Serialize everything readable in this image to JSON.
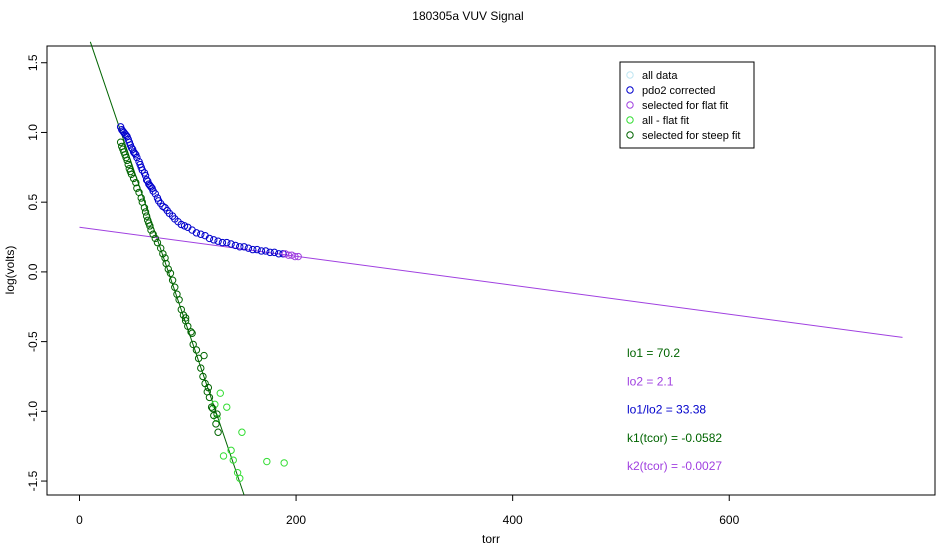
{
  "chart_data": {
    "type": "scatter",
    "title": "180305a   VUV Signal",
    "xlabel": "torr",
    "ylabel": "log(volts)",
    "xlim": [
      -30,
      790
    ],
    "ylim": [
      -1.6,
      1.62
    ],
    "x_ticks": [
      0,
      200,
      400,
      600
    ],
    "x_tick_labels": [
      "0",
      "200",
      "400",
      "600"
    ],
    "y_ticks": [
      1.5,
      1.0,
      0.5,
      0.0,
      -0.5,
      -1.0,
      -1.5
    ],
    "y_tick_labels": [
      "1.5",
      "1.0",
      "0.5",
      "0.0",
      "-0.5",
      "-1.0",
      "-1.5"
    ],
    "legend": {
      "position": "top-right",
      "entries": [
        {
          "label": "all data",
          "color": "#bfe6f2"
        },
        {
          "label": "pdo2 corrected",
          "color": "#0000cc"
        },
        {
          "label": "selected for flat fit",
          "color": "#a040e0"
        },
        {
          "label": "all - flat fit",
          "color": "#33dd33"
        },
        {
          "label": "selected for steep fit",
          "color": "#006400"
        }
      ]
    },
    "series": [
      {
        "name": "pdo2 corrected",
        "color": "#0000cc",
        "points": [
          [
            38,
            1.04
          ],
          [
            39,
            1.02
          ],
          [
            40,
            1.01
          ],
          [
            41,
            1.0
          ],
          [
            42,
            0.99
          ],
          [
            43,
            0.98
          ],
          [
            44,
            0.97
          ],
          [
            45,
            0.95
          ],
          [
            46,
            0.93
          ],
          [
            47,
            0.91
          ],
          [
            48,
            0.89
          ],
          [
            49,
            0.88
          ],
          [
            50,
            0.86
          ],
          [
            51,
            0.85
          ],
          [
            52,
            0.84
          ],
          [
            53,
            0.82
          ],
          [
            55,
            0.79
          ],
          [
            56,
            0.77
          ],
          [
            57,
            0.75
          ],
          [
            58,
            0.73
          ],
          [
            60,
            0.71
          ],
          [
            61,
            0.69
          ],
          [
            62,
            0.66
          ],
          [
            63,
            0.65
          ],
          [
            64,
            0.63
          ],
          [
            65,
            0.62
          ],
          [
            66,
            0.61
          ],
          [
            67,
            0.6
          ],
          [
            68,
            0.58
          ],
          [
            70,
            0.56
          ],
          [
            72,
            0.53
          ],
          [
            73,
            0.51
          ],
          [
            75,
            0.49
          ],
          [
            77,
            0.47
          ],
          [
            79,
            0.46
          ],
          [
            81,
            0.44
          ],
          [
            83,
            0.42
          ],
          [
            86,
            0.4
          ],
          [
            88,
            0.38
          ],
          [
            91,
            0.36
          ],
          [
            94,
            0.34
          ],
          [
            97,
            0.33
          ],
          [
            100,
            0.32
          ],
          [
            104,
            0.3
          ],
          [
            108,
            0.28
          ],
          [
            112,
            0.27
          ],
          [
            116,
            0.26
          ],
          [
            120,
            0.24
          ],
          [
            124,
            0.23
          ],
          [
            128,
            0.22
          ],
          [
            132,
            0.21
          ],
          [
            136,
            0.21
          ],
          [
            140,
            0.2
          ],
          [
            144,
            0.19
          ],
          [
            148,
            0.18
          ],
          [
            152,
            0.18
          ],
          [
            156,
            0.17
          ],
          [
            160,
            0.16
          ],
          [
            164,
            0.16
          ],
          [
            168,
            0.15
          ],
          [
            172,
            0.15
          ],
          [
            176,
            0.14
          ],
          [
            180,
            0.14
          ],
          [
            184,
            0.13
          ],
          [
            188,
            0.13
          ]
        ]
      },
      {
        "name": "selected for flat fit",
        "color": "#a040e0",
        "points": [
          [
            190,
            0.13
          ],
          [
            193,
            0.12
          ],
          [
            196,
            0.12
          ],
          [
            199,
            0.11
          ],
          [
            202,
            0.11
          ]
        ]
      },
      {
        "name": "all - flat fit",
        "color": "#33dd33",
        "points": [
          [
            130,
            -0.87
          ],
          [
            136,
            -0.97
          ],
          [
            140,
            -1.28
          ],
          [
            142,
            -1.35
          ],
          [
            146,
            -1.44
          ],
          [
            148,
            -1.48
          ],
          [
            133,
            -1.32
          ],
          [
            150,
            -1.15
          ],
          [
            173,
            -1.36
          ],
          [
            189,
            -1.37
          ],
          [
            125,
            -0.95
          ],
          [
            127,
            -1.05
          ]
        ]
      },
      {
        "name": "selected for steep fit",
        "color": "#006400",
        "points": [
          [
            38,
            0.93
          ],
          [
            39,
            0.9
          ],
          [
            40,
            0.88
          ],
          [
            41,
            0.86
          ],
          [
            42,
            0.84
          ],
          [
            43,
            0.82
          ],
          [
            44,
            0.8
          ],
          [
            45,
            0.77
          ],
          [
            46,
            0.74
          ],
          [
            47,
            0.72
          ],
          [
            48,
            0.7
          ],
          [
            50,
            0.67
          ],
          [
            52,
            0.64
          ],
          [
            53,
            0.6
          ],
          [
            55,
            0.57
          ],
          [
            57,
            0.53
          ],
          [
            58,
            0.5
          ],
          [
            60,
            0.46
          ],
          [
            61,
            0.43
          ],
          [
            62,
            0.4
          ],
          [
            63,
            0.37
          ],
          [
            64,
            0.35
          ],
          [
            65,
            0.33
          ],
          [
            66,
            0.3
          ],
          [
            68,
            0.27
          ],
          [
            70,
            0.24
          ],
          [
            72,
            0.21
          ],
          [
            75,
            0.17
          ],
          [
            77,
            0.13
          ],
          [
            79,
            0.1
          ],
          [
            80,
            0.06
          ],
          [
            82,
            0.02
          ],
          [
            84,
            -0.01
          ],
          [
            86,
            -0.06
          ],
          [
            88,
            -0.11
          ],
          [
            90,
            -0.16
          ],
          [
            92,
            -0.2
          ],
          [
            94,
            -0.27
          ],
          [
            96,
            -0.31
          ],
          [
            98,
            -0.35
          ],
          [
            100,
            -0.39
          ],
          [
            103,
            -0.43
          ],
          [
            105,
            -0.52
          ],
          [
            108,
            -0.56
          ],
          [
            110,
            -0.62
          ],
          [
            112,
            -0.69
          ],
          [
            114,
            -0.75
          ],
          [
            116,
            -0.8
          ],
          [
            118,
            -0.86
          ],
          [
            120,
            -0.9
          ],
          [
            122,
            -0.97
          ],
          [
            124,
            -1.03
          ],
          [
            126,
            -1.09
          ],
          [
            128,
            -1.15
          ],
          [
            98,
            -0.33
          ],
          [
            104,
            -0.44
          ],
          [
            115,
            -0.6
          ],
          [
            119,
            -0.83
          ],
          [
            123,
            -0.98
          ],
          [
            127,
            -1.02
          ]
        ]
      }
    ],
    "fit_lines": [
      {
        "name": "steep fit",
        "color": "#006400",
        "x": [
          10,
          152
        ],
        "y": [
          1.65,
          -1.6
        ]
      },
      {
        "name": "flat fit",
        "color": "#a040e0",
        "x": [
          0,
          760
        ],
        "y": [
          0.32,
          -0.47
        ]
      }
    ],
    "annotations": [
      {
        "text": "lo1 =  70.2",
        "color": "#006400"
      },
      {
        "text": "lo2 =  2.1",
        "color": "#a040e0"
      },
      {
        "text": "lo1/lo2 =  33.38",
        "color": "#0000cc"
      },
      {
        "text": "k1(tcor) =  -0.0582",
        "color": "#006400"
      },
      {
        "text": "k2(tcor) =  -0.0027",
        "color": "#a040e0"
      }
    ]
  }
}
